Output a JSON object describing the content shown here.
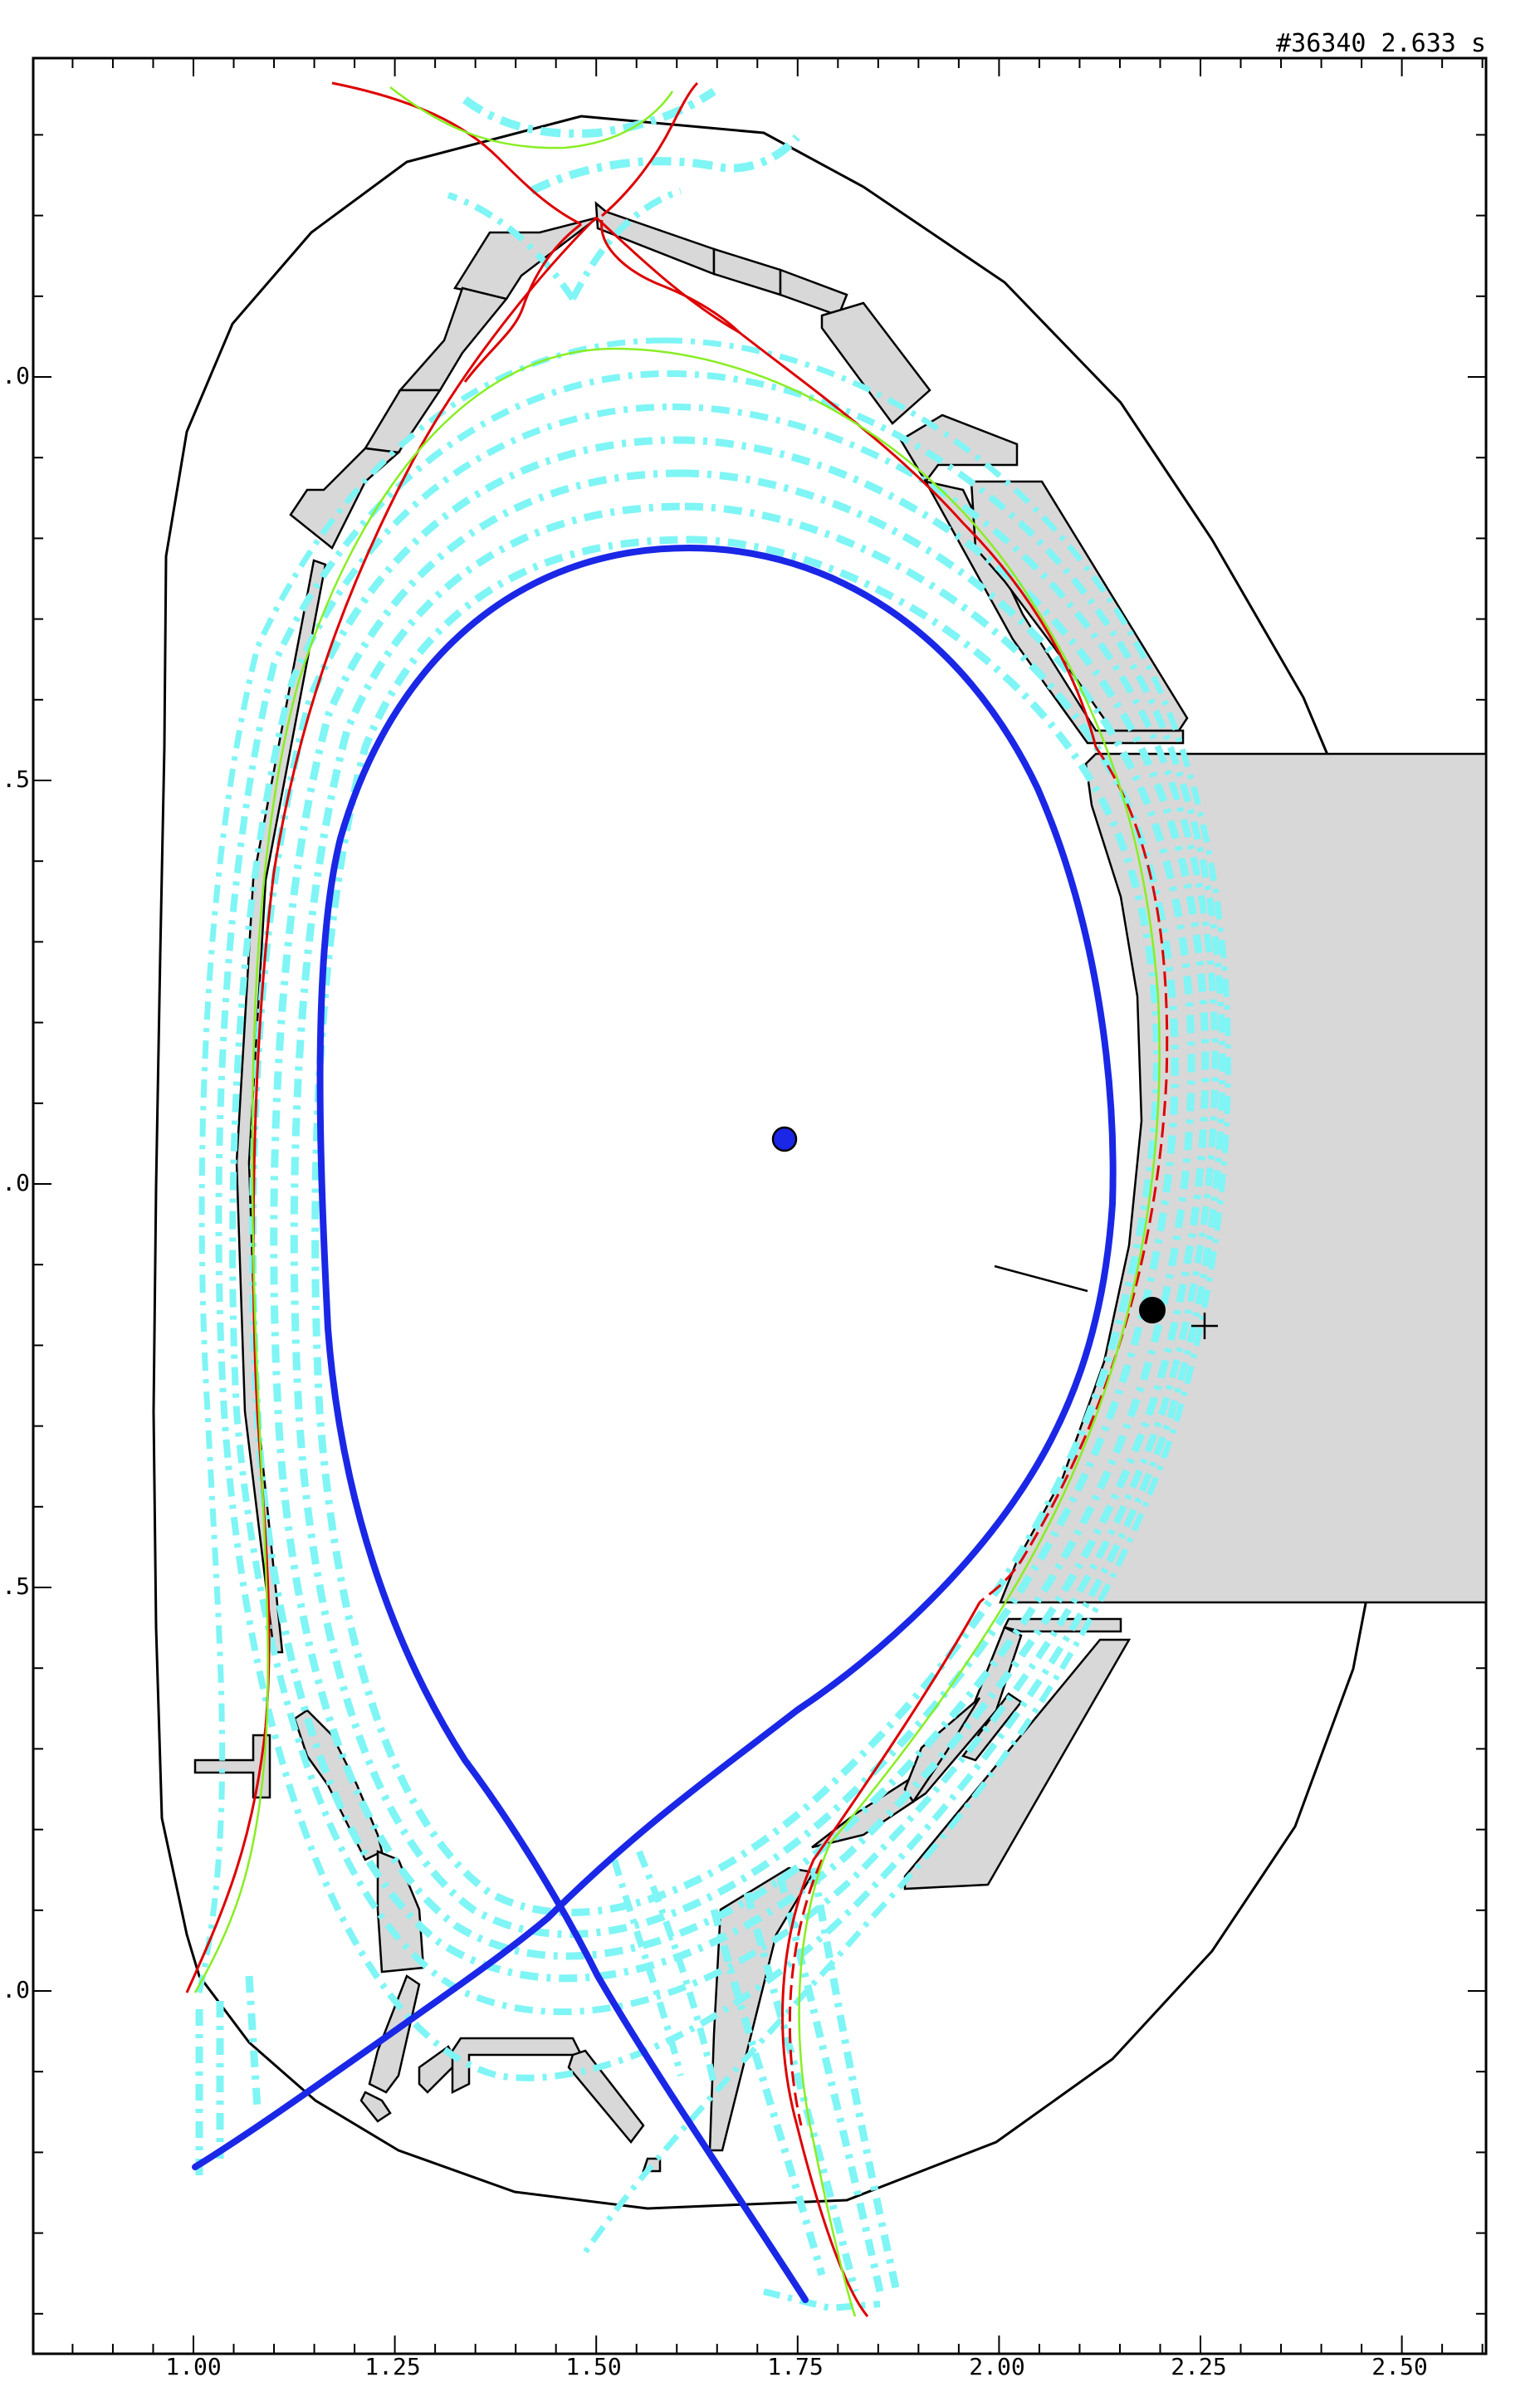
{
  "header": {
    "shot_label": "#36340 2.633 s"
  },
  "axes": {
    "x_ticks": [
      "1.00",
      "1.25",
      "1.50",
      "1.75",
      "2.00",
      "2.25",
      "2.50"
    ],
    "y_ticks": [
      ".0",
      ".5",
      ".0",
      ".5",
      ".0"
    ]
  },
  "colors": {
    "separatrix": "#dd0000",
    "flux_surface": "#88ee22",
    "scrape_off_layer": "#7ff5f5",
    "last_closed_surface": "#1a27e6",
    "wall": "#000000",
    "component_fill": "#d8d8d8",
    "magnetic_axis": "#1a27e6"
  }
}
